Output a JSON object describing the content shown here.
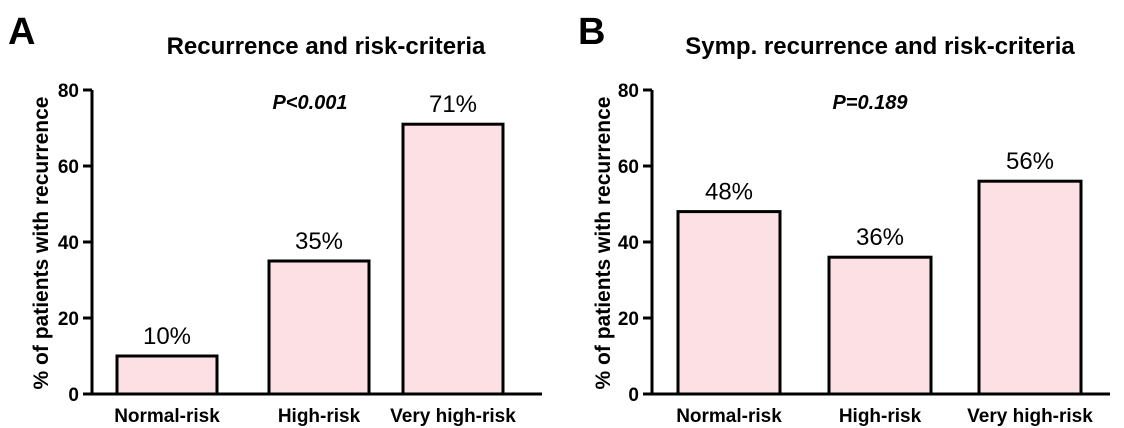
{
  "chart_data": [
    {
      "type": "bar",
      "panel": "A",
      "title": "Recurrence and risk-criteria",
      "ylabel": "% of patients with recurrence",
      "xlabel": "",
      "categories": [
        "Normal-risk",
        "High-risk",
        "Very high-risk"
      ],
      "values": [
        10,
        35,
        71
      ],
      "data_labels": [
        "10%",
        "35%",
        "71%"
      ],
      "ylim": [
        0,
        80
      ],
      "yticks": [
        0,
        20,
        40,
        60,
        80
      ],
      "annotation": "P<0.001",
      "bar_color": "#fde0e3",
      "grid": false,
      "legend": "none"
    },
    {
      "type": "bar",
      "panel": "B",
      "title": "Symp. recurrence and risk-criteria",
      "ylabel": "% of patients with recurrence",
      "xlabel": "",
      "categories": [
        "Normal-risk",
        "High-risk",
        "Very high-risk"
      ],
      "values": [
        48,
        36,
        56
      ],
      "data_labels": [
        "48%",
        "36%",
        "56%"
      ],
      "ylim": [
        0,
        80
      ],
      "yticks": [
        0,
        20,
        40,
        60,
        80
      ],
      "annotation": "P=0.189",
      "bar_color": "#fde0e3",
      "grid": false,
      "legend": "none"
    }
  ]
}
